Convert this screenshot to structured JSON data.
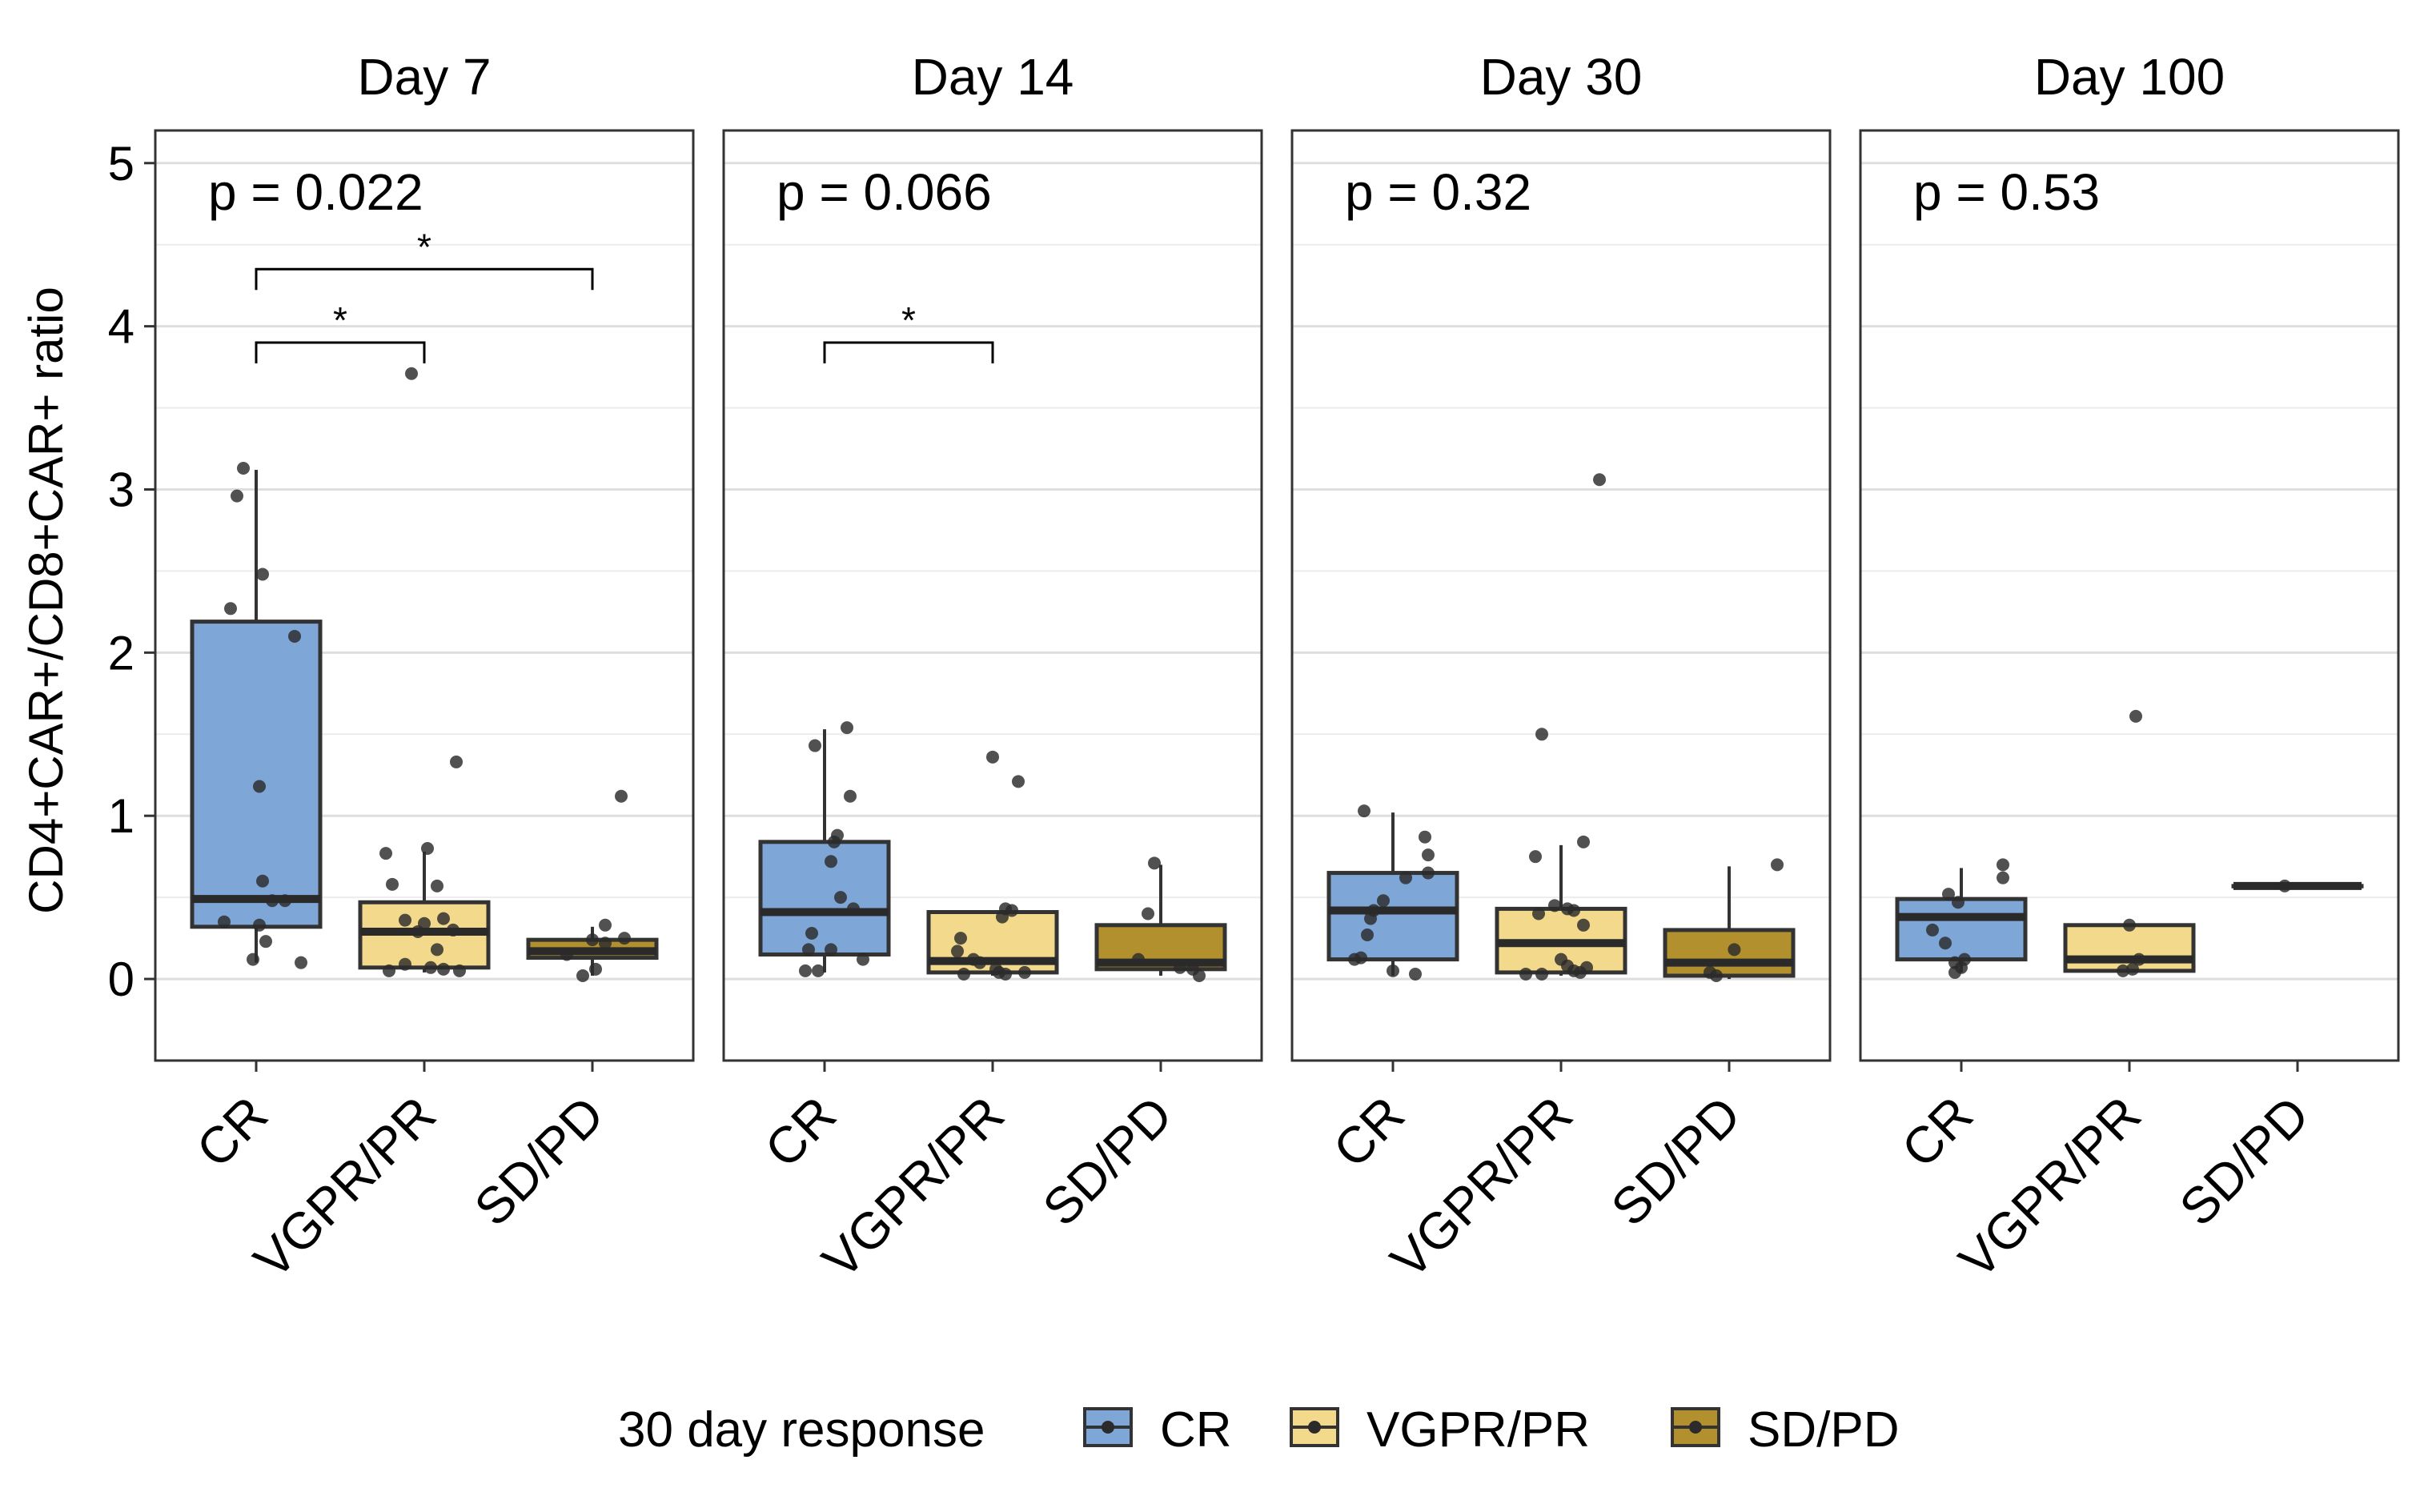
{
  "chart_data": {
    "type": "box",
    "ylabel": "CD4+CAR+/CD8+CAR+ ratio",
    "ylim": [
      -0.5,
      5.2
    ],
    "yticks": [
      0,
      1,
      2,
      3,
      4,
      5
    ],
    "categories": [
      "CR",
      "VGPR/PR",
      "SD/PD"
    ],
    "grid": true,
    "legend": {
      "title": "30 day response",
      "position": "bottom",
      "items": [
        {
          "label": "CR",
          "color": "#7ea6d6"
        },
        {
          "label": "VGPR/PR",
          "color": "#f3d98c"
        },
        {
          "label": "SD/PD",
          "color": "#b2902e"
        }
      ]
    },
    "panels": [
      {
        "title": "Day 7",
        "p_label": "p = 0.022",
        "significance": [
          {
            "from": 0,
            "to": 1,
            "y": 3.9,
            "label": "*"
          },
          {
            "from": 0,
            "to": 2,
            "y": 4.35,
            "label": "*"
          }
        ],
        "groups": [
          {
            "category": "CR",
            "q1": 0.32,
            "median": 0.49,
            "q3": 2.19,
            "whisker_low": 0.1,
            "whisker_high": 3.12,
            "points": [
              [
                -0.5,
                0.35
              ],
              [
                -0.2,
                3.13
              ],
              [
                0.1,
                2.48
              ],
              [
                -0.3,
                2.96
              ],
              [
                -0.4,
                2.27
              ],
              [
                0.6,
                2.1
              ],
              [
                0.05,
                1.18
              ],
              [
                0.1,
                0.6
              ],
              [
                0.25,
                0.48
              ],
              [
                0.45,
                0.48
              ],
              [
                0.05,
                0.33
              ],
              [
                0.15,
                0.23
              ],
              [
                -0.05,
                0.12
              ],
              [
                0.7,
                0.1
              ]
            ]
          },
          {
            "category": "VGPR/PR",
            "q1": 0.07,
            "median": 0.29,
            "q3": 0.47,
            "whisker_low": 0.04,
            "whisker_high": 0.78,
            "points": [
              [
                -0.2,
                3.71
              ],
              [
                0.5,
                1.33
              ],
              [
                0.05,
                0.8
              ],
              [
                -0.6,
                0.77
              ],
              [
                0.2,
                0.57
              ],
              [
                -0.5,
                0.58
              ],
              [
                0.3,
                0.37
              ],
              [
                -0.3,
                0.36
              ],
              [
                0.0,
                0.34
              ],
              [
                0.45,
                0.3
              ],
              [
                -0.1,
                0.29
              ],
              [
                0.2,
                0.18
              ],
              [
                -0.3,
                0.09
              ],
              [
                0.1,
                0.07
              ],
              [
                0.3,
                0.06
              ],
              [
                0.55,
                0.05
              ],
              [
                -0.55,
                0.05
              ]
            ]
          },
          {
            "category": "SD/PD",
            "q1": 0.13,
            "median": 0.17,
            "q3": 0.24,
            "whisker_low": 0.02,
            "whisker_high": 0.32,
            "points": [
              [
                0.45,
                1.12
              ],
              [
                0.2,
                0.33
              ],
              [
                0.5,
                0.25
              ],
              [
                0.0,
                0.24
              ],
              [
                0.2,
                0.22
              ],
              [
                -0.4,
                0.15
              ],
              [
                0.05,
                0.06
              ],
              [
                -0.15,
                0.02
              ]
            ]
          }
        ]
      },
      {
        "title": "Day 14",
        "p_label": "p = 0.066",
        "significance": [
          {
            "from": 0,
            "to": 1,
            "y": 3.9,
            "label": "*"
          }
        ],
        "groups": [
          {
            "category": "CR",
            "q1": 0.15,
            "median": 0.41,
            "q3": 0.84,
            "whisker_low": 0.04,
            "whisker_high": 1.53,
            "points": [
              [
                0.35,
                1.54
              ],
              [
                -0.15,
                1.43
              ],
              [
                0.4,
                1.12
              ],
              [
                0.2,
                0.88
              ],
              [
                0.15,
                0.84
              ],
              [
                0.1,
                0.72
              ],
              [
                0.25,
                0.5
              ],
              [
                0.45,
                0.43
              ],
              [
                -0.2,
                0.28
              ],
              [
                0.1,
                0.18
              ],
              [
                -0.25,
                0.18
              ],
              [
                0.6,
                0.12
              ],
              [
                -0.3,
                0.05
              ],
              [
                -0.1,
                0.05
              ]
            ]
          },
          {
            "category": "VGPR/PR",
            "q1": 0.04,
            "median": 0.11,
            "q3": 0.41,
            "whisker_low": 0.02,
            "whisker_high": 0.41,
            "points": [
              [
                0.0,
                1.36
              ],
              [
                0.4,
                1.21
              ],
              [
                0.2,
                0.43
              ],
              [
                0.3,
                0.42
              ],
              [
                0.15,
                0.38
              ],
              [
                -0.5,
                0.25
              ],
              [
                -0.55,
                0.17
              ],
              [
                -0.3,
                0.12
              ],
              [
                -0.2,
                0.1
              ],
              [
                0.05,
                0.06
              ],
              [
                0.1,
                0.04
              ],
              [
                0.2,
                0.03
              ],
              [
                -0.45,
                0.03
              ],
              [
                0.5,
                0.04
              ]
            ]
          },
          {
            "category": "SD/PD",
            "q1": 0.06,
            "median": 0.1,
            "q3": 0.33,
            "whisker_low": 0.02,
            "whisker_high": 0.7,
            "points": [
              [
                -0.1,
                0.71
              ],
              [
                -0.2,
                0.4
              ],
              [
                -0.35,
                0.12
              ],
              [
                0.3,
                0.07
              ],
              [
                0.5,
                0.06
              ],
              [
                0.6,
                0.02
              ]
            ]
          }
        ]
      },
      {
        "title": "Day 30",
        "p_label": "p = 0.32",
        "significance": [],
        "groups": [
          {
            "category": "CR",
            "q1": 0.12,
            "median": 0.42,
            "q3": 0.65,
            "whisker_low": 0.02,
            "whisker_high": 1.02,
            "points": [
              [
                -0.45,
                1.03
              ],
              [
                0.5,
                0.87
              ],
              [
                0.55,
                0.76
              ],
              [
                0.55,
                0.65
              ],
              [
                0.2,
                0.62
              ],
              [
                -0.15,
                0.48
              ],
              [
                -0.3,
                0.42
              ],
              [
                -0.35,
                0.37
              ],
              [
                -0.4,
                0.27
              ],
              [
                -0.5,
                0.13
              ],
              [
                -0.6,
                0.12
              ],
              [
                0.0,
                0.05
              ],
              [
                0.35,
                0.03
              ]
            ]
          },
          {
            "category": "VGPR/PR",
            "q1": 0.04,
            "median": 0.22,
            "q3": 0.43,
            "whisker_low": 0.02,
            "whisker_high": 0.82,
            "points": [
              [
                0.6,
                3.06
              ],
              [
                -0.3,
                1.5
              ],
              [
                0.35,
                0.84
              ],
              [
                -0.4,
                0.75
              ],
              [
                -0.1,
                0.45
              ],
              [
                0.1,
                0.43
              ],
              [
                0.2,
                0.42
              ],
              [
                -0.35,
                0.4
              ],
              [
                0.35,
                0.33
              ],
              [
                0.0,
                0.12
              ],
              [
                0.1,
                0.08
              ],
              [
                0.2,
                0.05
              ],
              [
                0.3,
                0.04
              ],
              [
                -0.55,
                0.03
              ],
              [
                -0.3,
                0.03
              ],
              [
                0.4,
                0.07
              ]
            ]
          },
          {
            "category": "SD/PD",
            "q1": 0.02,
            "median": 0.1,
            "q3": 0.3,
            "whisker_low": 0.0,
            "whisker_high": 0.69,
            "points": [
              [
                0.75,
                0.7
              ],
              [
                0.08,
                0.18
              ],
              [
                -0.3,
                0.04
              ],
              [
                -0.2,
                0.02
              ]
            ]
          }
        ]
      },
      {
        "title": "Day 100",
        "p_label": "p = 0.53",
        "significance": [],
        "groups": [
          {
            "category": "CR",
            "q1": 0.12,
            "median": 0.38,
            "q3": 0.49,
            "whisker_low": 0.04,
            "whisker_high": 0.68,
            "points": [
              [
                0.65,
                0.7
              ],
              [
                0.65,
                0.62
              ],
              [
                -0.2,
                0.52
              ],
              [
                -0.05,
                0.47
              ],
              [
                -0.45,
                0.3
              ],
              [
                -0.25,
                0.22
              ],
              [
                -0.1,
                0.1
              ],
              [
                0.05,
                0.12
              ],
              [
                0.0,
                0.07
              ],
              [
                -0.1,
                0.04
              ]
            ]
          },
          {
            "category": "VGPR/PR",
            "q1": 0.05,
            "median": 0.12,
            "q3": 0.33,
            "whisker_low": 0.05,
            "whisker_high": 0.33,
            "points": [
              [
                0.1,
                1.61
              ],
              [
                0.0,
                0.33
              ],
              [
                0.15,
                0.12
              ],
              [
                -0.1,
                0.05
              ],
              [
                0.05,
                0.06
              ]
            ]
          },
          {
            "category": "SD/PD",
            "q1": 0.57,
            "median": 0.57,
            "q3": 0.57,
            "whisker_low": 0.57,
            "whisker_high": 0.57,
            "points": [
              [
                -0.2,
                0.57
              ]
            ]
          }
        ]
      }
    ]
  }
}
